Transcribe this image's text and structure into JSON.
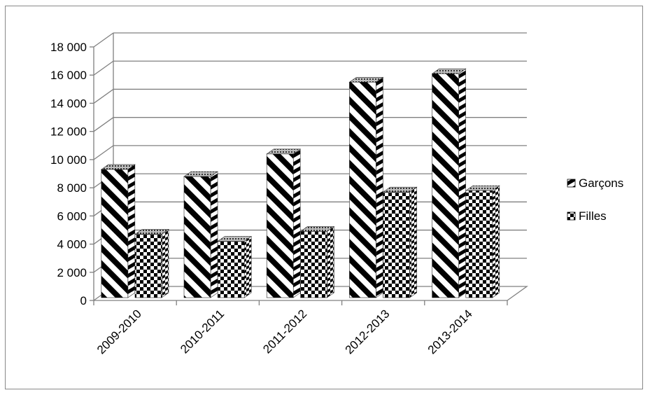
{
  "chart_data": {
    "type": "bar",
    "title": "",
    "xlabel": "",
    "ylabel": "",
    "categories": [
      "2009-2010",
      "2010-2011",
      "2011-2012",
      "2012-2013",
      "2013-2014"
    ],
    "series": [
      {
        "name": "Garçons",
        "values": [
          9300,
          8800,
          10400,
          15500,
          16100
        ],
        "pattern": "diagonal-stripes"
      },
      {
        "name": "Filles",
        "values": [
          4700,
          4200,
          4900,
          7700,
          7800
        ],
        "pattern": "checkerboard"
      }
    ],
    "ylim": [
      0,
      18000
    ],
    "yticks": [
      0,
      2000,
      4000,
      6000,
      8000,
      10000,
      12000,
      14000,
      16000,
      18000
    ],
    "ytick_labels": [
      "0",
      "2 000",
      "4 000",
      "6 000",
      "8 000",
      "10 000",
      "12 000",
      "14 000",
      "16 000",
      "18 000"
    ],
    "grid": true,
    "three_d": true,
    "legend_position": "right",
    "colors": {
      "ink": "#000000",
      "grid": "#808080",
      "background": "#ffffff"
    }
  }
}
